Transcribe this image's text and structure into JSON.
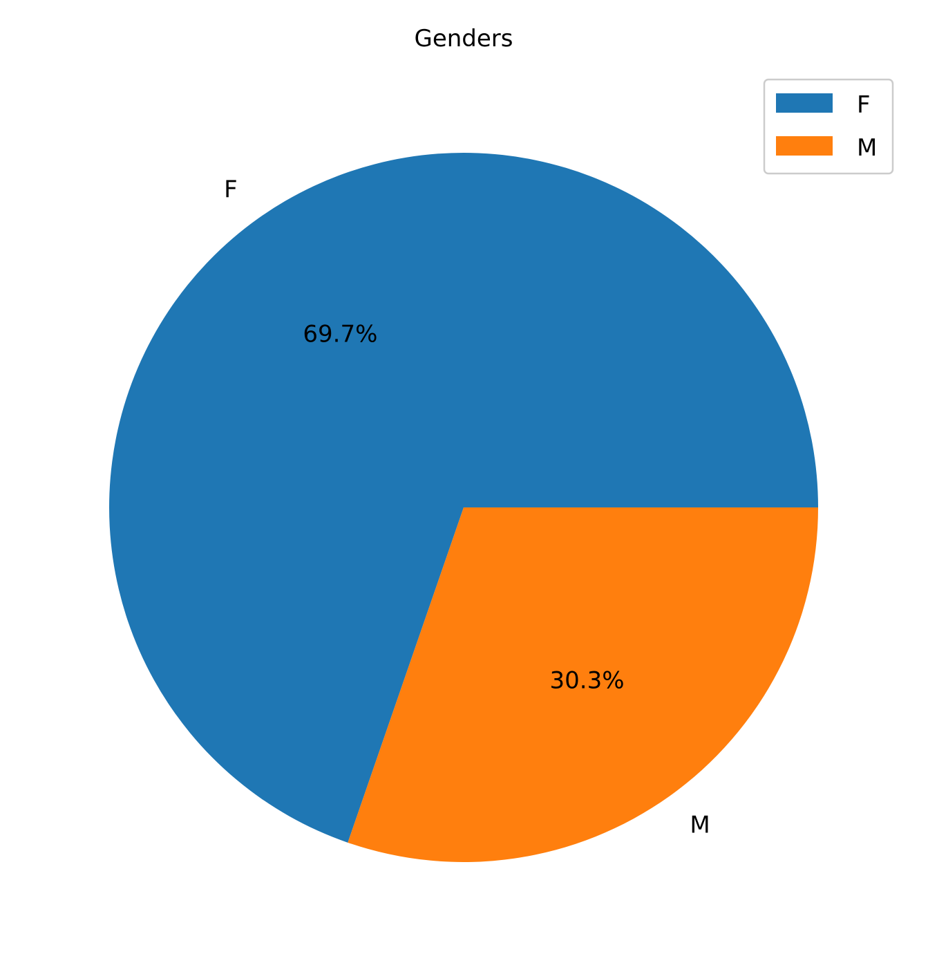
{
  "chart_data": {
    "type": "pie",
    "title": "Genders",
    "categories": [
      "F",
      "M"
    ],
    "values": [
      69.7,
      30.3
    ],
    "percent_labels": [
      "69.7%",
      "30.3%"
    ],
    "colors": [
      "#1f77b4",
      "#ff7f0e"
    ],
    "start_angle_deg": 0,
    "direction": "counterclockwise",
    "legend": {
      "placement": "top-right",
      "entries": [
        "F",
        "M"
      ]
    }
  }
}
